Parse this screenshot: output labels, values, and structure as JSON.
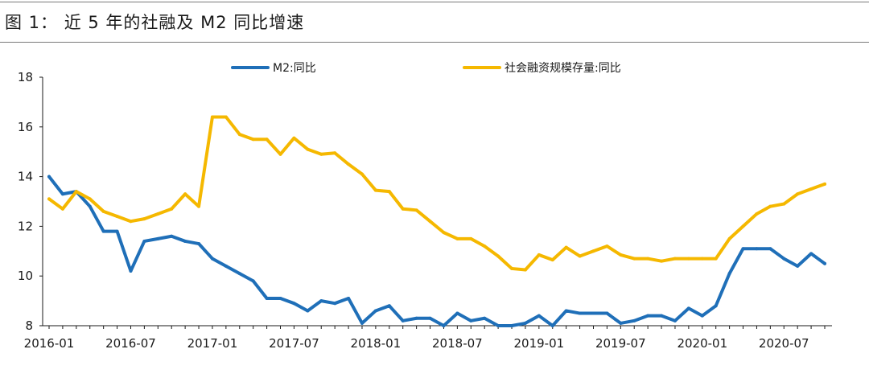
{
  "figure": {
    "title": "图 1：  近 5 年的社融及 M2 同比增速"
  },
  "chart_data": {
    "type": "line",
    "title": "",
    "xlabel": "",
    "ylabel": "",
    "ylim": [
      8,
      18
    ],
    "yticks": [
      8,
      10,
      12,
      14,
      16,
      18
    ],
    "x": [
      "2016-01",
      "2016-02",
      "2016-03",
      "2016-04",
      "2016-05",
      "2016-06",
      "2016-07",
      "2016-08",
      "2016-09",
      "2016-10",
      "2016-11",
      "2016-12",
      "2017-01",
      "2017-02",
      "2017-03",
      "2017-04",
      "2017-05",
      "2017-06",
      "2017-07",
      "2017-08",
      "2017-09",
      "2017-10",
      "2017-11",
      "2017-12",
      "2018-01",
      "2018-02",
      "2018-03",
      "2018-04",
      "2018-05",
      "2018-06",
      "2018-07",
      "2018-08",
      "2018-09",
      "2018-10",
      "2018-11",
      "2018-12",
      "2019-01",
      "2019-02",
      "2019-03",
      "2019-04",
      "2019-05",
      "2019-06",
      "2019-07",
      "2019-08",
      "2019-09",
      "2019-10",
      "2019-11",
      "2019-12",
      "2020-01",
      "2020-02",
      "2020-03",
      "2020-04",
      "2020-05",
      "2020-06",
      "2020-07",
      "2020-08",
      "2020-09",
      "2020-10"
    ],
    "xtick_labels": [
      "2016-01",
      "2016-07",
      "2017-01",
      "2017-07",
      "2018-01",
      "2018-07",
      "2019-01",
      "2019-07",
      "2020-01",
      "2020-07"
    ],
    "grid": false,
    "legend": {
      "placement": "top"
    },
    "series": [
      {
        "name": "M2:同比",
        "color": "#1f6fb8",
        "values": [
          14.0,
          13.3,
          13.4,
          12.8,
          11.8,
          11.8,
          10.2,
          11.4,
          11.5,
          11.6,
          11.4,
          11.3,
          10.7,
          10.4,
          10.1,
          9.8,
          9.1,
          9.1,
          8.9,
          8.6,
          9.0,
          8.9,
          9.1,
          8.1,
          8.6,
          8.8,
          8.2,
          8.3,
          8.3,
          8.0,
          8.5,
          8.2,
          8.3,
          8.0,
          8.0,
          8.1,
          8.4,
          8.0,
          8.6,
          8.5,
          8.5,
          8.5,
          8.1,
          8.2,
          8.4,
          8.4,
          8.2,
          8.7,
          8.4,
          8.8,
          10.1,
          11.1,
          11.1,
          11.1,
          10.7,
          10.4,
          10.9,
          10.5
        ]
      },
      {
        "name": "社会融资规模存量:同比",
        "color": "#f5b800",
        "values": [
          13.1,
          12.7,
          13.4,
          13.1,
          12.6,
          12.4,
          12.2,
          12.3,
          12.5,
          12.7,
          13.3,
          12.8,
          16.4,
          16.4,
          15.7,
          15.5,
          15.5,
          14.9,
          15.55,
          15.1,
          14.9,
          14.95,
          14.5,
          14.1,
          13.45,
          13.4,
          12.7,
          12.65,
          12.2,
          11.75,
          11.5,
          11.5,
          11.2,
          10.8,
          10.3,
          10.25,
          10.85,
          10.65,
          11.15,
          10.8,
          11.0,
          11.2,
          10.85,
          10.7,
          10.7,
          10.6,
          10.7,
          10.7,
          10.7,
          10.7,
          11.5,
          12.0,
          12.5,
          12.8,
          12.9,
          13.3,
          13.5,
          13.7
        ]
      }
    ]
  }
}
